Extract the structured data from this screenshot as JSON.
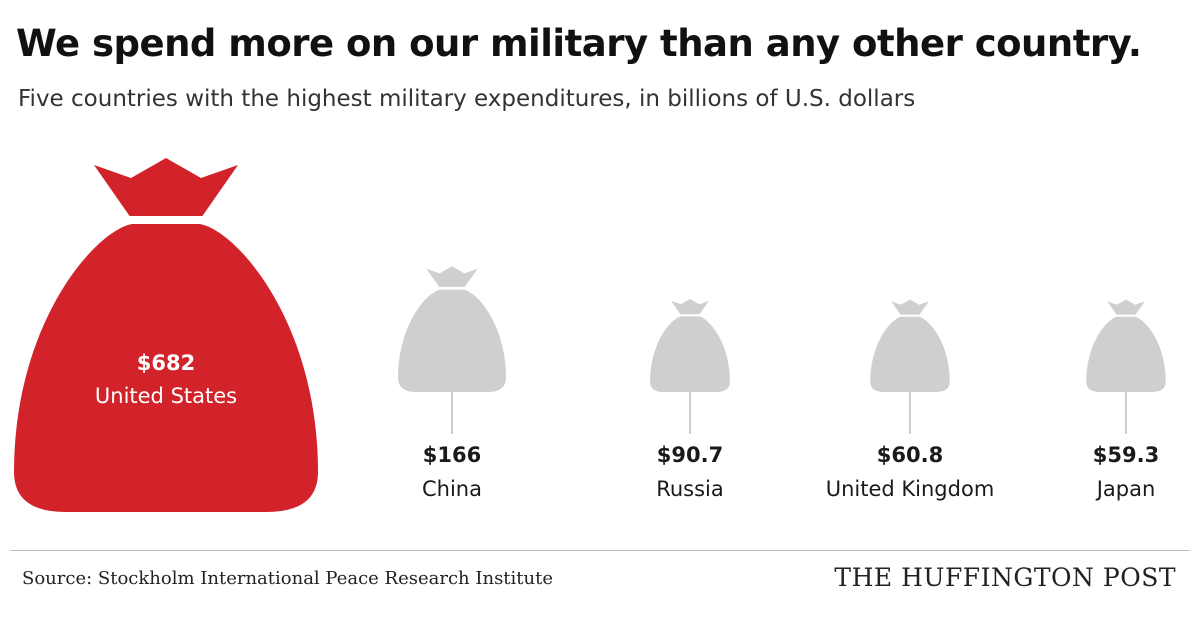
{
  "header": {
    "title": "We spend more on our military than any other country.",
    "subtitle": "Five countries with the highest military expenditures, in billions of U.S. dollars"
  },
  "footer": {
    "source": "Source: Stockholm International Peace Research Institute",
    "brand": "THE HUFFINGTON POST"
  },
  "colors": {
    "highlight": "#d2232a",
    "bag": "#cfcfcf",
    "label_on_highlight": "#ffffff",
    "label": "#1a1a1a"
  },
  "chart_data": {
    "type": "bar",
    "title": "We spend more on our military than any other country.",
    "subtitle": "Five countries with the highest military expenditures, in billions of U.S. dollars",
    "mark": "money-bag",
    "categories": [
      "United States",
      "China",
      "Russia",
      "United Kingdom",
      "Japan"
    ],
    "values": [
      682,
      166,
      90.7,
      60.8,
      59.3
    ],
    "value_labels": [
      "$682",
      "$166",
      "$90.7",
      "$60.8",
      "$59.3"
    ],
    "highlight_index": 0
  }
}
